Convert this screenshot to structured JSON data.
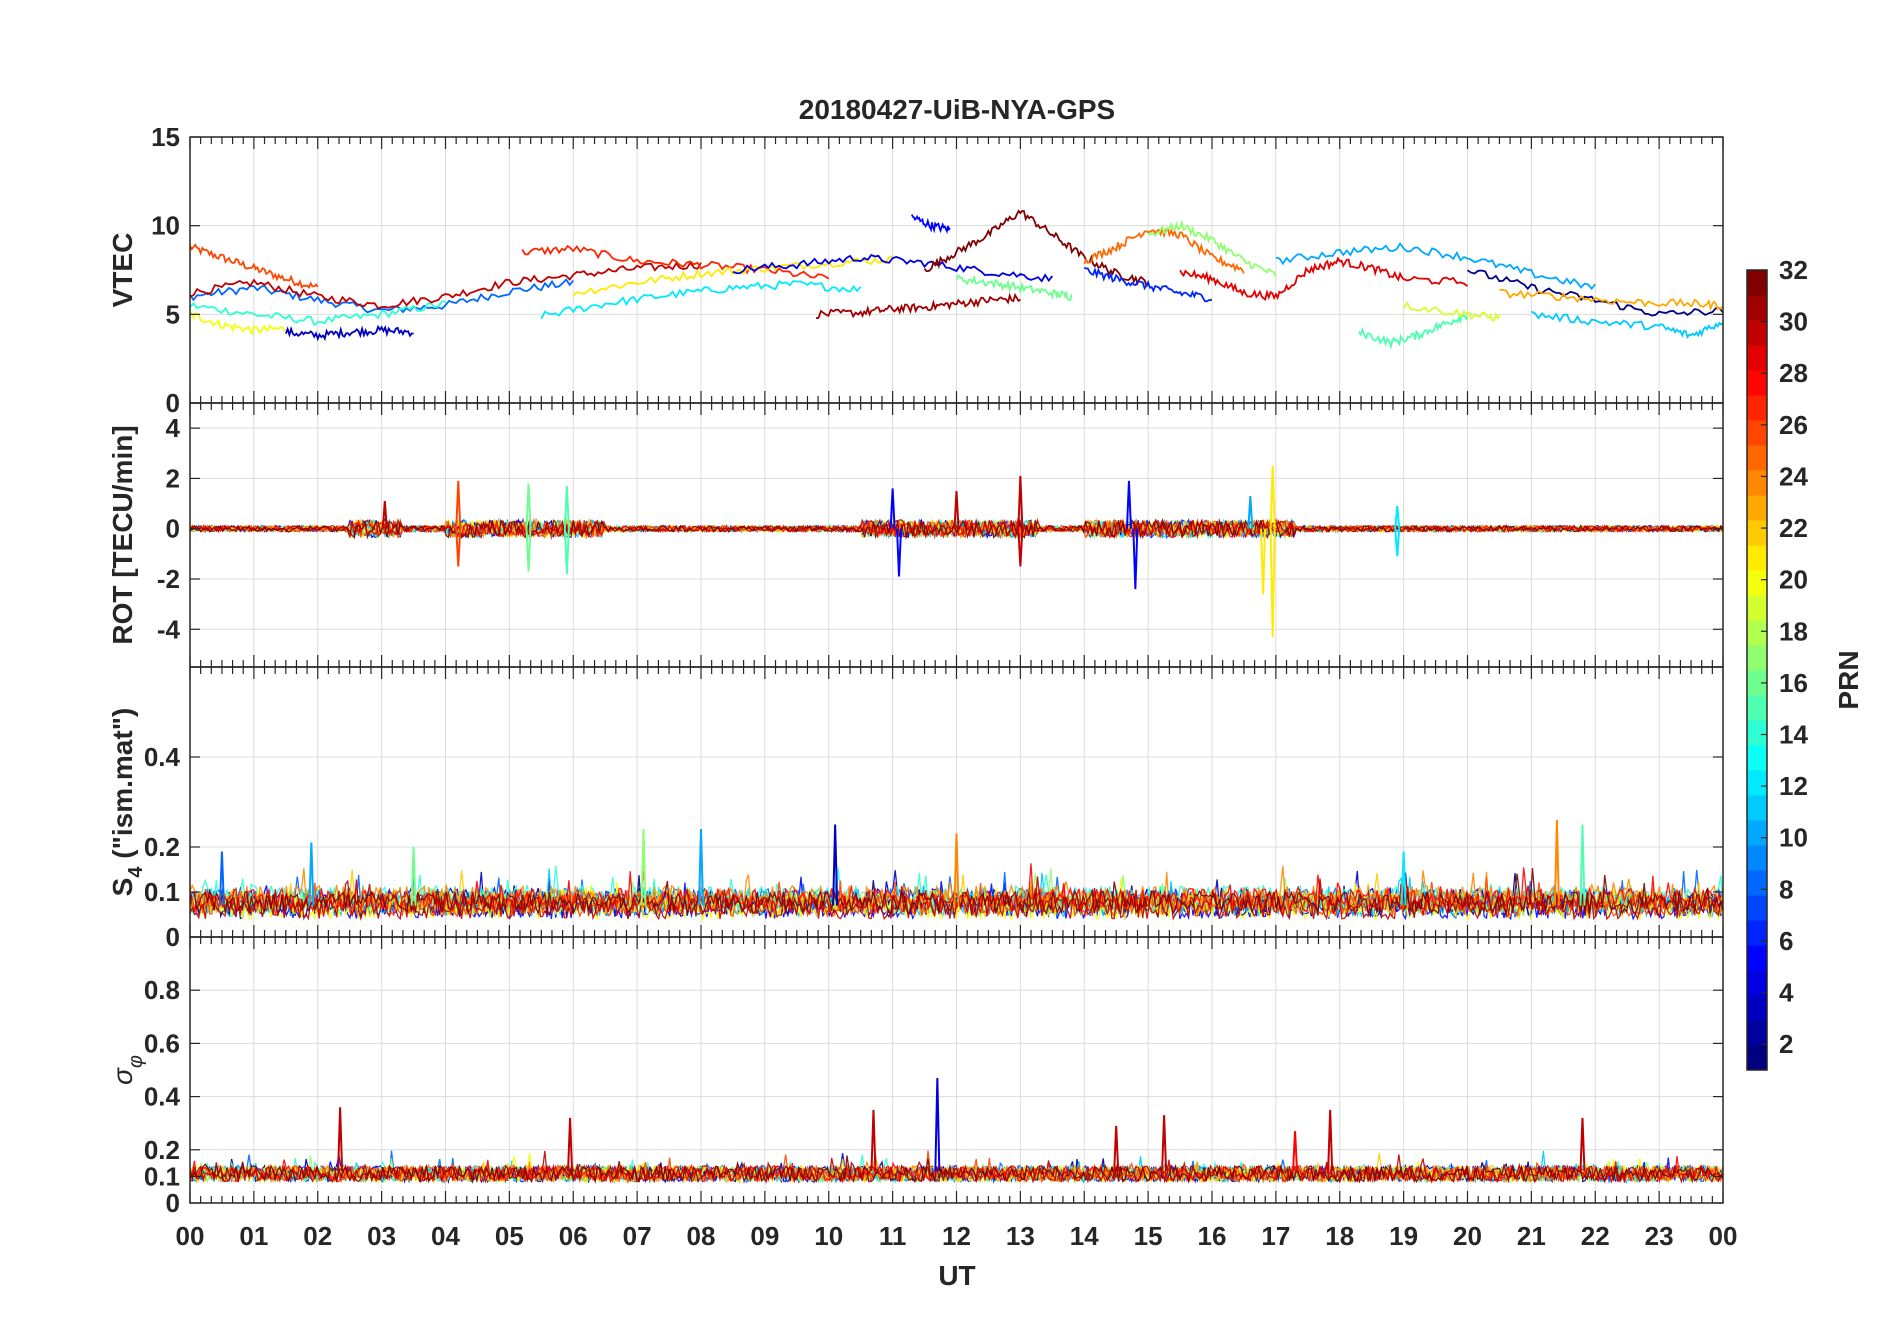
{
  "chart_data": {
    "type": "line",
    "title": "20180427-UiB-NYA-GPS",
    "xlabel": "UT",
    "x_tick_labels": [
      "00",
      "01",
      "02",
      "03",
      "04",
      "05",
      "06",
      "07",
      "08",
      "09",
      "10",
      "11",
      "12",
      "13",
      "14",
      "15",
      "16",
      "17",
      "18",
      "19",
      "20",
      "21",
      "22",
      "23",
      "00"
    ],
    "xlim": [
      0,
      24
    ],
    "grid": true,
    "colorbar": {
      "label": "PRN",
      "ticks": [
        "2",
        "4",
        "6",
        "8",
        "10",
        "12",
        "14",
        "16",
        "18",
        "20",
        "22",
        "24",
        "26",
        "28",
        "30",
        "32"
      ],
      "range": [
        1,
        32
      ],
      "colormap": "jet",
      "levels": 32
    },
    "panels": [
      {
        "ylabel": "VTEC",
        "ylim": [
          0,
          15
        ],
        "yticks": [
          "0",
          "5",
          "10",
          "15"
        ],
        "series": [
          {
            "prn": 26,
            "x": [
              0,
              0.5,
              1.0,
              1.5,
              2.0
            ],
            "y": [
              8.8,
              8.2,
              7.6,
              7.0,
              6.5
            ]
          },
          {
            "prn": 8,
            "x": [
              0,
              1.0,
              2.0,
              3.0,
              4.0,
              5.0,
              6.0
            ],
            "y": [
              6.0,
              6.5,
              5.8,
              5.2,
              5.5,
              6.3,
              6.8
            ]
          },
          {
            "prn": 14,
            "x": [
              0,
              1.0,
              2.0,
              3.0,
              4.0
            ],
            "y": [
              5.5,
              5.0,
              4.6,
              5.0,
              5.6
            ]
          },
          {
            "prn": 20,
            "x": [
              0,
              0.5,
              1.0,
              1.5
            ],
            "y": [
              5.0,
              4.4,
              4.1,
              4.2
            ]
          },
          {
            "prn": 30,
            "x": [
              0,
              1.0,
              2.0,
              3.0,
              4.0,
              5.0,
              6.0,
              7.0,
              8.0
            ],
            "y": [
              6.2,
              6.8,
              6.0,
              5.5,
              6.0,
              6.8,
              7.2,
              7.6,
              7.8
            ]
          },
          {
            "prn": 3,
            "x": [
              1.5,
              2.0,
              2.5,
              3.0,
              3.5
            ],
            "y": [
              4.0,
              3.8,
              4.0,
              4.1,
              4.0
            ]
          },
          {
            "prn": 27,
            "x": [
              5.2,
              6.0,
              7.0,
              8.0,
              9.0,
              10.0
            ],
            "y": [
              8.5,
              8.7,
              8.0,
              7.8,
              7.5,
              7.0
            ]
          },
          {
            "prn": 12,
            "x": [
              5.5,
              6.5,
              7.5,
              8.5,
              9.5,
              10.5
            ],
            "y": [
              4.9,
              5.6,
              6.1,
              6.5,
              6.7,
              6.4
            ]
          },
          {
            "prn": 21,
            "x": [
              6.0,
              7.0,
              8.0,
              9.0,
              10.0,
              11.0
            ],
            "y": [
              6.2,
              6.8,
              7.3,
              7.6,
              7.9,
              8.1
            ]
          },
          {
            "prn": 4,
            "x": [
              8.5,
              9.5,
              10.5,
              11.5,
              12.5,
              13.5
            ],
            "y": [
              7.5,
              7.8,
              8.2,
              7.9,
              7.4,
              7.0
            ]
          },
          {
            "prn": 31,
            "x": [
              9.8,
              10.5,
              11.0,
              11.5,
              12.0,
              12.5,
              13.0
            ],
            "y": [
              5.0,
              5.1,
              5.3,
              5.4,
              5.6,
              5.8,
              5.9
            ]
          },
          {
            "prn": 5,
            "x": [
              11.3,
              11.6,
              11.9
            ],
            "y": [
              10.5,
              10.0,
              9.8
            ]
          },
          {
            "prn": 32,
            "x": [
              11.5,
              12.0,
              12.5,
              13.0,
              13.5,
              14.0,
              14.5,
              15.0
            ],
            "y": [
              7.5,
              8.5,
              9.5,
              10.8,
              9.5,
              8.2,
              7.3,
              6.8
            ]
          },
          {
            "prn": 16,
            "x": [
              12.0,
              12.5,
              13.0,
              13.5,
              13.8
            ],
            "y": [
              7.0,
              6.8,
              6.5,
              6.2,
              6.0
            ]
          },
          {
            "prn": 25,
            "x": [
              14.0,
              14.5,
              15.0,
              15.5,
              16.0,
              16.5
            ],
            "y": [
              8.0,
              8.8,
              9.8,
              9.5,
              8.2,
              7.5
            ]
          },
          {
            "prn": 17,
            "x": [
              15.0,
              15.5,
              16.0,
              16.5,
              17.0
            ],
            "y": [
              9.5,
              10.0,
              9.2,
              8.0,
              7.2
            ]
          },
          {
            "prn": 6,
            "x": [
              14.0,
              14.5,
              15.0,
              15.5,
              16.0
            ],
            "y": [
              7.5,
              7.0,
              6.6,
              6.2,
              5.9
            ]
          },
          {
            "prn": 29,
            "x": [
              15.5,
              16.0,
              16.5,
              17.0,
              17.5,
              18.0,
              18.5,
              19.0,
              20.0
            ],
            "y": [
              7.4,
              7.0,
              6.2,
              6.0,
              7.5,
              8.0,
              7.6,
              7.0,
              6.8
            ]
          },
          {
            "prn": 10,
            "x": [
              17.0,
              18.0,
              19.0,
              20.0,
              21.0,
              22.0
            ],
            "y": [
              8.0,
              8.5,
              8.8,
              8.2,
              7.3,
              6.5
            ]
          },
          {
            "prn": 15,
            "x": [
              18.3,
              18.8,
              19.2,
              19.6,
              20.0
            ],
            "y": [
              4.0,
              3.4,
              3.8,
              4.4,
              5.0
            ]
          },
          {
            "prn": 1,
            "x": [
              20.0,
              21.0,
              22.0,
              23.0,
              24.0
            ],
            "y": [
              7.5,
              6.5,
              5.8,
              5.0,
              5.2
            ]
          },
          {
            "prn": 23,
            "x": [
              20.5,
              21.5,
              22.5,
              23.5,
              24.0
            ],
            "y": [
              6.2,
              6.0,
              5.7,
              5.6,
              5.5
            ]
          },
          {
            "prn": 11,
            "x": [
              21.0,
              22.0,
              23.0,
              23.5,
              24.0
            ],
            "y": [
              5.0,
              4.6,
              4.3,
              3.8,
              4.6
            ]
          },
          {
            "prn": 19,
            "x": [
              19.0,
              20.0,
              20.5
            ],
            "y": [
              5.5,
              5.0,
              4.8
            ]
          }
        ]
      },
      {
        "ylabel": "ROT [TECU/min]",
        "ylim": [
          -5.5,
          5
        ],
        "yticks": [
          "-4",
          "-2",
          "0",
          "2",
          "4"
        ],
        "spikes": [
          {
            "prn": 30,
            "x": 3.05,
            "y": 1.1
          },
          {
            "prn": 26,
            "x": 4.2,
            "y": 1.9
          },
          {
            "prn": 26,
            "x": 4.2,
            "y": -1.5
          },
          {
            "prn": 16,
            "x": 5.3,
            "y": 1.8
          },
          {
            "prn": 16,
            "x": 5.3,
            "y": -1.7
          },
          {
            "prn": 15,
            "x": 5.9,
            "y": 1.7
          },
          {
            "prn": 15,
            "x": 5.9,
            "y": -1.8
          },
          {
            "prn": 5,
            "x": 11.0,
            "y": 1.6
          },
          {
            "prn": 5,
            "x": 11.1,
            "y": -1.9
          },
          {
            "prn": 30,
            "x": 12.0,
            "y": 1.5
          },
          {
            "prn": 30,
            "x": 13.0,
            "y": 2.1
          },
          {
            "prn": 30,
            "x": 13.0,
            "y": -1.5
          },
          {
            "prn": 5,
            "x": 14.7,
            "y": 1.9
          },
          {
            "prn": 5,
            "x": 14.8,
            "y": -2.4
          },
          {
            "prn": 10,
            "x": 16.6,
            "y": 1.3
          },
          {
            "prn": 21,
            "x": 16.8,
            "y": -2.6
          },
          {
            "prn": 21,
            "x": 16.95,
            "y": 2.5
          },
          {
            "prn": 21,
            "x": 16.95,
            "y": -4.3
          },
          {
            "prn": 12,
            "x": 18.9,
            "y": 0.9
          },
          {
            "prn": 12,
            "x": 18.9,
            "y": -1.1
          }
        ]
      },
      {
        "ylabel": "S4 (\"ism.mat\")",
        "ylabel_main": "S",
        "ylabel_sub": "4",
        "ylabel_rest": " (\"ism.mat\")",
        "ylim": [
          0,
          0.6
        ],
        "yticks": [
          "0",
          "0.1",
          "0.2",
          "0.4"
        ],
        "spikes": [
          {
            "prn": 8,
            "x": 0.5,
            "y": 0.19
          },
          {
            "prn": 10,
            "x": 1.9,
            "y": 0.21
          },
          {
            "prn": 16,
            "x": 3.5,
            "y": 0.2
          },
          {
            "prn": 17,
            "x": 7.1,
            "y": 0.24
          },
          {
            "prn": 10,
            "x": 8.0,
            "y": 0.24
          },
          {
            "prn": 3,
            "x": 10.1,
            "y": 0.25
          },
          {
            "prn": 24,
            "x": 12.0,
            "y": 0.23
          },
          {
            "prn": 24,
            "x": 21.4,
            "y": 0.26
          },
          {
            "prn": 15,
            "x": 21.8,
            "y": 0.25
          },
          {
            "prn": 12,
            "x": 19.0,
            "y": 0.19
          }
        ]
      },
      {
        "ylabel": "σ φ",
        "ylabel_main": "σ",
        "ylabel_sub": "φ",
        "ylim": [
          0,
          1
        ],
        "yticks": [
          "0",
          "0.1",
          "0.2",
          "0.4",
          "0.6",
          "0.8"
        ],
        "spikes": [
          {
            "prn": 30,
            "x": 2.35,
            "y": 0.36
          },
          {
            "prn": 30,
            "x": 5.95,
            "y": 0.32
          },
          {
            "prn": 30,
            "x": 10.7,
            "y": 0.35
          },
          {
            "prn": 4,
            "x": 11.7,
            "y": 0.47
          },
          {
            "prn": 30,
            "x": 14.5,
            "y": 0.29
          },
          {
            "prn": 30,
            "x": 15.25,
            "y": 0.33
          },
          {
            "prn": 28,
            "x": 17.3,
            "y": 0.27
          },
          {
            "prn": 30,
            "x": 17.85,
            "y": 0.35
          },
          {
            "prn": 30,
            "x": 21.8,
            "y": 0.32
          }
        ]
      }
    ]
  }
}
